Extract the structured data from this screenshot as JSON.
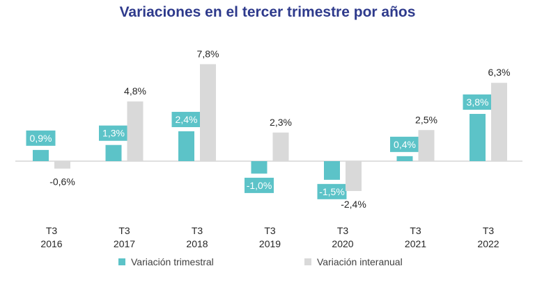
{
  "chart_data": {
    "type": "bar",
    "title": "Variaciones en el tercer trimestre por años",
    "categories": [
      {
        "line1": "T3",
        "line2": "2016"
      },
      {
        "line1": "T3",
        "line2": "2017"
      },
      {
        "line1": "T3",
        "line2": "2018"
      },
      {
        "line1": "T3",
        "line2": "2019"
      },
      {
        "line1": "T3",
        "line2": "2020"
      },
      {
        "line1": "T3",
        "line2": "2021"
      },
      {
        "line1": "T3",
        "line2": "2022"
      }
    ],
    "series": [
      {
        "name": "Variación trimestral",
        "color": "#5cc3c8",
        "values": [
          0.9,
          1.3,
          2.4,
          -1.0,
          -1.5,
          0.4,
          3.8
        ],
        "labels": [
          "0,9%",
          "1,3%",
          "2,4%",
          "-1,0%",
          "-1,5%",
          "0,4%",
          "3,8%"
        ]
      },
      {
        "name": "Variación interanual",
        "color": "#d9d9d9",
        "values": [
          -0.6,
          4.8,
          7.8,
          2.3,
          -2.4,
          2.5,
          6.3
        ],
        "labels": [
          "-0,6%",
          "4,8%",
          "7,8%",
          "2,3%",
          "-2,4%",
          "2,5%",
          "6,3%"
        ]
      }
    ],
    "ylim": [
      -3,
      9
    ],
    "grid": false,
    "legend_position": "bottom"
  }
}
